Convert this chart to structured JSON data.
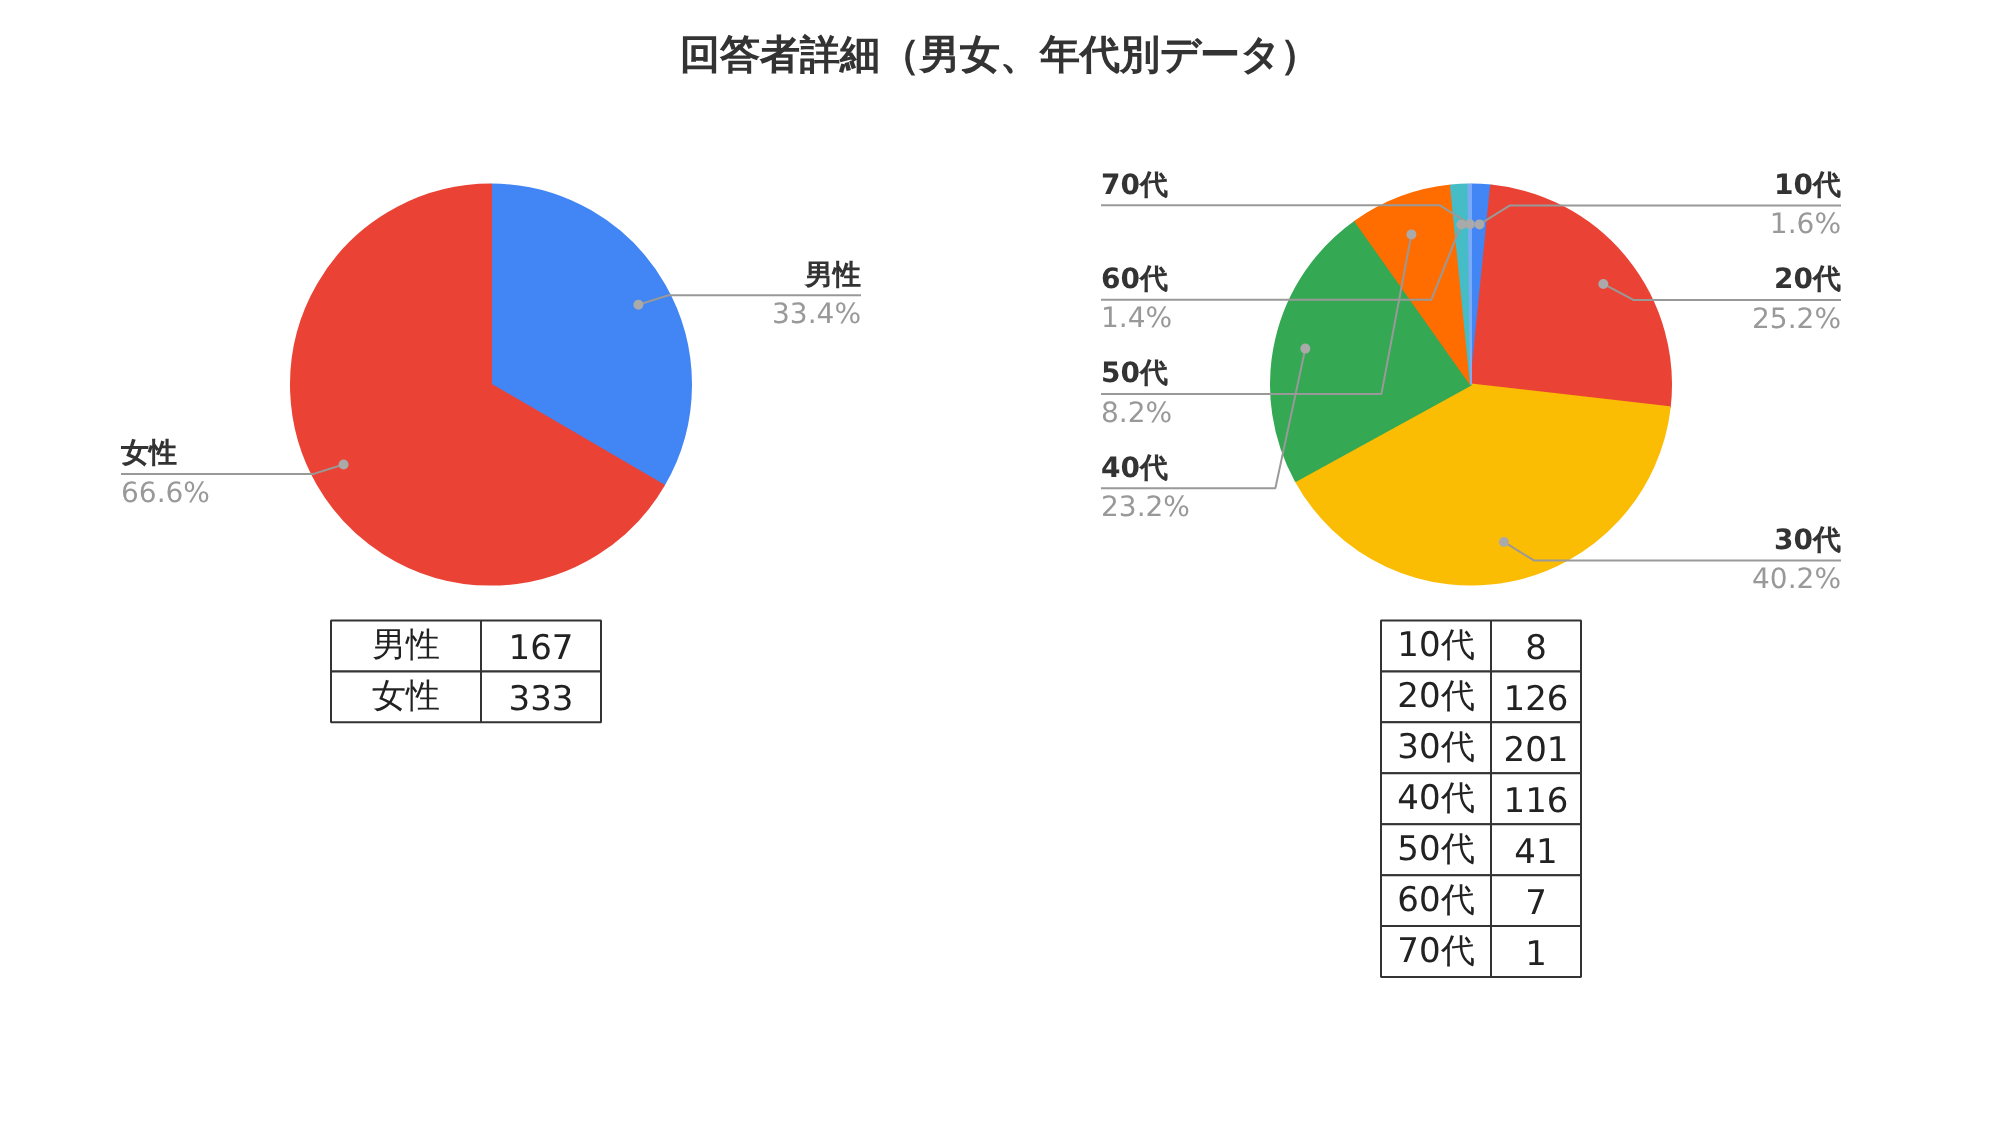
{
  "chart_data": [
    {
      "type": "pie",
      "title": "回答者詳細（男女、年代別データ）",
      "categories": [
        "男性",
        "女性"
      ],
      "values": [
        33.4,
        66.6
      ],
      "colors": [
        "#4285f4",
        "#ea4335"
      ],
      "value_labels": [
        "33.4%",
        "66.6%"
      ],
      "annotations": [
        "167",
        "333"
      ]
    },
    {
      "type": "pie",
      "categories": [
        "10代",
        "20代",
        "30代",
        "40代",
        "50代",
        "60代",
        "70代"
      ],
      "values": [
        1.6,
        25.2,
        40.2,
        23.2,
        8.2,
        1.4,
        0.2
      ],
      "colors": [
        "#4285f4",
        "#ea4335",
        "#fbbc04",
        "#34a853",
        "#ff6d01",
        "#46bdc6",
        "#7baaf7"
      ],
      "value_labels": [
        "1.6%",
        "25.2%",
        "40.2%",
        "23.2%",
        "8.2%",
        "1.4%",
        null
      ],
      "annotations": [
        "8",
        "126",
        "201",
        "116",
        "41",
        "7",
        "1"
      ]
    }
  ]
}
